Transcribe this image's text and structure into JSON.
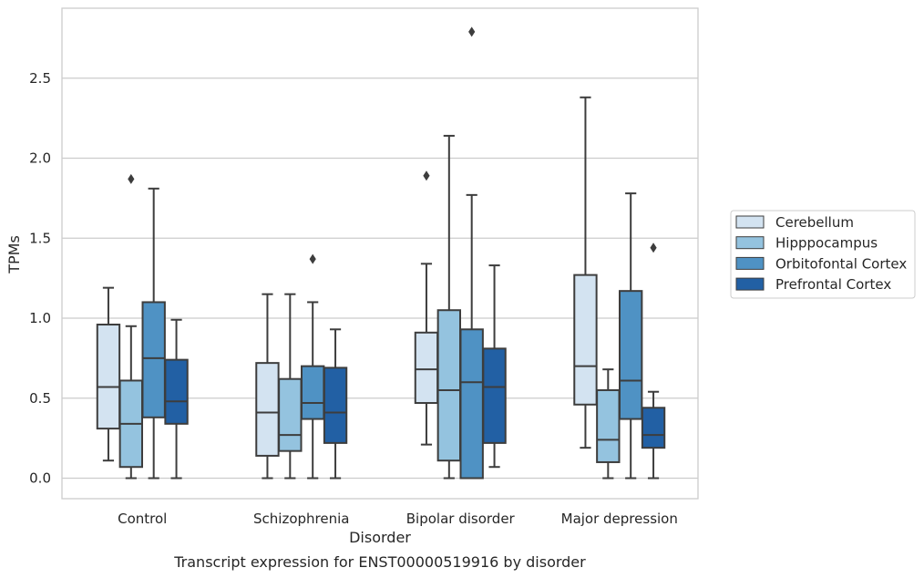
{
  "caption": "Transcript expression for ENST00000519916 by disorder",
  "colors": {
    "Cerebellum": "#d3e3f1",
    "Hipppocampus": "#94c3df",
    "Orbitofontal Cortex": "#4f92c4",
    "Prefrontal Cortex": "#2260a4",
    "line": "#3d3d3d",
    "grid": "#cccccc",
    "frame": "#cccccc"
  },
  "chart_data": {
    "type": "box",
    "title": "",
    "xlabel": "Disorder",
    "ylabel": "TPMs",
    "ylim": [
      -0.13,
      2.93
    ],
    "yticks": [
      0.0,
      0.5,
      1.0,
      1.5,
      2.0,
      2.5
    ],
    "ytick_labels": [
      "0.0",
      "0.5",
      "1.0",
      "1.5",
      "2.0",
      "2.5"
    ],
    "grid": "horizontal",
    "legend_position": "right",
    "categories": [
      "Control",
      "Schizophrenia",
      "Bipolar disorder",
      "Major depression"
    ],
    "series": [
      {
        "name": "Cerebellum",
        "boxes": [
          {
            "whisker_low": 0.11,
            "q1": 0.31,
            "median": 0.57,
            "q3": 0.96,
            "whisker_high": 1.19,
            "outliers": []
          },
          {
            "whisker_low": 0.0,
            "q1": 0.14,
            "median": 0.41,
            "q3": 0.72,
            "whisker_high": 1.15,
            "outliers": []
          },
          {
            "whisker_low": 0.21,
            "q1": 0.47,
            "median": 0.68,
            "q3": 0.91,
            "whisker_high": 1.34,
            "outliers": [
              1.89
            ]
          },
          {
            "whisker_low": 0.19,
            "q1": 0.46,
            "median": 0.7,
            "q3": 1.27,
            "whisker_high": 2.38,
            "outliers": []
          }
        ]
      },
      {
        "name": "Hipppocampus",
        "boxes": [
          {
            "whisker_low": 0.0,
            "q1": 0.07,
            "median": 0.34,
            "q3": 0.61,
            "whisker_high": 0.95,
            "outliers": [
              1.87
            ]
          },
          {
            "whisker_low": 0.0,
            "q1": 0.17,
            "median": 0.27,
            "q3": 0.62,
            "whisker_high": 1.15,
            "outliers": []
          },
          {
            "whisker_low": 0.0,
            "q1": 0.11,
            "median": 0.55,
            "q3": 1.05,
            "whisker_high": 2.14,
            "outliers": []
          },
          {
            "whisker_low": 0.0,
            "q1": 0.1,
            "median": 0.24,
            "q3": 0.55,
            "whisker_high": 0.68,
            "outliers": []
          }
        ]
      },
      {
        "name": "Orbitofontal Cortex",
        "boxes": [
          {
            "whisker_low": 0.0,
            "q1": 0.38,
            "median": 0.75,
            "q3": 1.1,
            "whisker_high": 1.81,
            "outliers": []
          },
          {
            "whisker_low": 0.0,
            "q1": 0.37,
            "median": 0.47,
            "q3": 0.7,
            "whisker_high": 1.1,
            "outliers": [
              1.37
            ]
          },
          {
            "whisker_low": 0.0,
            "q1": 0.0,
            "median": 0.6,
            "q3": 0.93,
            "whisker_high": 1.77,
            "outliers": [
              2.79
            ]
          },
          {
            "whisker_low": 0.0,
            "q1": 0.37,
            "median": 0.61,
            "q3": 1.17,
            "whisker_high": 1.78,
            "outliers": []
          }
        ]
      },
      {
        "name": "Prefrontal Cortex",
        "boxes": [
          {
            "whisker_low": 0.0,
            "q1": 0.34,
            "median": 0.48,
            "q3": 0.74,
            "whisker_high": 0.99,
            "outliers": []
          },
          {
            "whisker_low": 0.0,
            "q1": 0.22,
            "median": 0.41,
            "q3": 0.69,
            "whisker_high": 0.93,
            "outliers": []
          },
          {
            "whisker_low": 0.07,
            "q1": 0.22,
            "median": 0.57,
            "q3": 0.81,
            "whisker_high": 1.33,
            "outliers": []
          },
          {
            "whisker_low": 0.0,
            "q1": 0.19,
            "median": 0.27,
            "q3": 0.44,
            "whisker_high": 0.54,
            "outliers": [
              1.44
            ]
          }
        ]
      }
    ]
  }
}
